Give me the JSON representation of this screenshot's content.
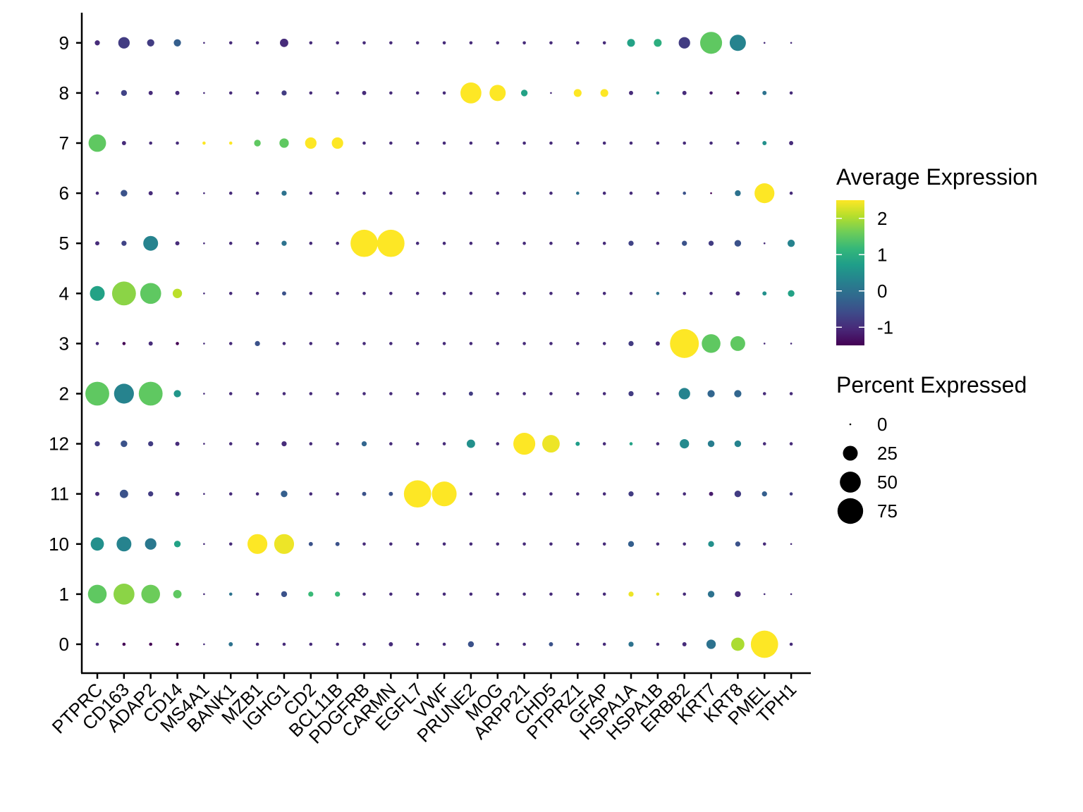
{
  "chart_data": {
    "type": "dotplot",
    "genes": [
      "PTPRC",
      "CD163",
      "ADAP2",
      "CD14",
      "MS4A1",
      "BANK1",
      "MZB1",
      "IGHG1",
      "CD2",
      "BCL11B",
      "PDGFRB",
      "CARMN",
      "EGFL7",
      "VWF",
      "PRUNE2",
      "MOG",
      "ARPP21",
      "CHD5",
      "PTPRZ1",
      "GFAP",
      "HSPA1A",
      "HSPA1B",
      "ERBB2",
      "KRT7",
      "KRT8",
      "PMEL",
      "TPH1"
    ],
    "clusters": [
      "0",
      "1",
      "10",
      "11",
      "12",
      "2",
      "3",
      "4",
      "5",
      "6",
      "7",
      "8",
      "9"
    ],
    "legend_color": {
      "title": "Average Expression",
      "ticks": [
        "2",
        "1",
        "0",
        "-1"
      ],
      "tick_values": [
        2,
        1,
        0,
        -1
      ],
      "range": [
        -1.5,
        2.5
      ],
      "colors": [
        "#440154",
        "#482878",
        "#3e4a89",
        "#31688e",
        "#26828e",
        "#1f9e89",
        "#35b779",
        "#6dcd59",
        "#b4de2c",
        "#fde725"
      ]
    },
    "legend_size": {
      "title": "Percent Expressed",
      "labels": [
        "0",
        "25",
        "50",
        "75"
      ],
      "values": [
        0,
        25,
        50,
        75
      ]
    },
    "points": {
      "0": {
        "pct": [
          1,
          1,
          1,
          1,
          0,
          2,
          1,
          1,
          1,
          1,
          1,
          2,
          1,
          1,
          4,
          1,
          1,
          2,
          1,
          1,
          3,
          1,
          2,
          10,
          20,
          85,
          1
        ],
        "avg": [
          -1,
          -1.5,
          -1.5,
          -1.5,
          -1,
          0,
          -1,
          -1,
          -1,
          -1,
          -1,
          -1,
          -1,
          -1,
          -0.5,
          -1,
          -1,
          -0.5,
          -1,
          -1,
          0,
          -1,
          -1,
          0,
          2,
          2.5,
          -1
        ]
      },
      "1": {
        "pct": [
          40,
          50,
          40,
          8,
          0,
          1,
          1,
          4,
          3,
          3,
          1,
          1,
          1,
          1,
          1,
          1,
          1,
          1,
          1,
          1,
          3,
          1,
          1,
          5,
          4,
          0,
          0
        ],
        "avg": [
          1.5,
          1.8,
          1.6,
          1.5,
          -1,
          0,
          -1,
          -0.5,
          1.2,
          1.2,
          -1,
          -1,
          -1,
          -1,
          -1,
          -1,
          -1,
          -1,
          -1,
          -1,
          2.4,
          2.4,
          -1,
          0,
          -1,
          -1,
          -1
        ]
      },
      "10": {
        "pct": [
          20,
          25,
          15,
          5,
          0,
          1,
          45,
          45,
          2,
          2,
          1,
          1,
          1,
          1,
          1,
          1,
          1,
          1,
          1,
          1,
          4,
          1,
          1,
          4,
          3,
          1,
          0
        ],
        "avg": [
          0.5,
          0.3,
          0.1,
          0.8,
          -1,
          -1,
          2.5,
          2.4,
          -0.5,
          -0.5,
          -1,
          -1,
          -1,
          -1,
          -1,
          -1,
          -1,
          -1,
          -1,
          -1,
          -0.3,
          -1,
          -1,
          0.5,
          -0.5,
          -1,
          -1
        ]
      },
      "11": {
        "pct": [
          2,
          8,
          3,
          2,
          0,
          1,
          1,
          5,
          1,
          1,
          2,
          2,
          85,
          70,
          1,
          1,
          1,
          1,
          1,
          1,
          3,
          1,
          1,
          2,
          5,
          3,
          1
        ],
        "avg": [
          -1,
          -0.5,
          -0.8,
          -1,
          -1,
          -1,
          -1,
          -0.3,
          -1,
          -1,
          -0.5,
          -0.5,
          2.5,
          2.5,
          -1,
          -1,
          -1,
          -1,
          -1,
          -1,
          -0.8,
          -1,
          -1,
          -1.2,
          -0.8,
          -0.3,
          -0.8
        ]
      },
      "12": {
        "pct": [
          3,
          5,
          3,
          2,
          0,
          1,
          1,
          3,
          1,
          1,
          3,
          1,
          1,
          1,
          8,
          1,
          55,
          35,
          2,
          1,
          1,
          1,
          10,
          5,
          5,
          1,
          1
        ],
        "avg": [
          -0.8,
          -0.5,
          -0.8,
          -1,
          -1,
          -1,
          -1,
          -1,
          -1,
          -1,
          -0.2,
          -1,
          -1,
          -1,
          0.5,
          -1,
          2.5,
          2.4,
          0.7,
          -1,
          0.8,
          -1,
          0.4,
          0.2,
          0.3,
          -1,
          -1
        ]
      },
      "2": {
        "pct": [
          65,
          45,
          65,
          6,
          0,
          1,
          1,
          1,
          1,
          1,
          1,
          1,
          1,
          1,
          2,
          1,
          1,
          1,
          1,
          1,
          3,
          1,
          15,
          6,
          6,
          1,
          1
        ],
        "avg": [
          1.5,
          0.3,
          1.5,
          0.6,
          -1,
          -1,
          -1,
          -1,
          -1,
          -1,
          -1,
          -1,
          -1,
          -1,
          -0.8,
          -1,
          -1,
          -1,
          -1,
          -1,
          -0.8,
          -1,
          0.3,
          -0.2,
          -0.2,
          -1,
          -1
        ]
      },
      "3": {
        "pct": [
          1,
          1,
          2,
          1,
          0,
          1,
          3,
          1,
          1,
          1,
          1,
          1,
          1,
          1,
          1,
          1,
          1,
          1,
          1,
          1,
          3,
          2,
          95,
          40,
          25,
          0,
          0
        ],
        "avg": [
          -1,
          -1.5,
          -1,
          -1.5,
          -1,
          -1,
          -0.5,
          -1,
          -1,
          -1,
          -1,
          -1,
          -1,
          -1,
          -1,
          -1,
          -1,
          -1,
          -1,
          -1,
          -0.8,
          -1,
          2.5,
          1.5,
          1.5,
          -1,
          -1
        ]
      },
      "4": {
        "pct": [
          25,
          65,
          50,
          10,
          0,
          1,
          1,
          2,
          1,
          1,
          1,
          1,
          1,
          1,
          1,
          1,
          1,
          1,
          1,
          1,
          1,
          1,
          1,
          1,
          2,
          2,
          5
        ],
        "avg": [
          0.8,
          1.8,
          1.5,
          2.1,
          -1,
          -1,
          -1,
          -0.5,
          -1,
          -1,
          -1,
          -1,
          -1,
          -1,
          -1,
          -1,
          -1,
          -1,
          -1,
          -1,
          -1,
          0,
          -1,
          -1,
          -1,
          0.5,
          0.8
        ]
      },
      "5": {
        "pct": [
          2,
          3,
          25,
          2,
          0,
          1,
          1,
          3,
          1,
          1,
          85,
          85,
          1,
          1,
          1,
          1,
          1,
          1,
          1,
          1,
          3,
          1,
          3,
          3,
          5,
          0,
          6
        ],
        "avg": [
          -1,
          -0.7,
          0.3,
          -1,
          -1,
          -1,
          -1,
          0,
          -1,
          -1,
          2.5,
          2.5,
          -1,
          -1,
          -1,
          -1,
          -1,
          -1,
          -1,
          -1,
          -0.7,
          -1,
          -0.5,
          -0.8,
          -0.5,
          -1,
          0.3
        ]
      },
      "6": {
        "pct": [
          1,
          5,
          2,
          1,
          0,
          1,
          1,
          3,
          1,
          1,
          1,
          1,
          1,
          1,
          1,
          1,
          1,
          1,
          1,
          1,
          1,
          1,
          1,
          0,
          4,
          45,
          1
        ],
        "avg": [
          -1,
          -0.5,
          -1,
          -1,
          -1,
          -1,
          -1,
          0,
          -1,
          -1,
          -1,
          -1,
          -1,
          -1,
          -1,
          -1,
          -1,
          -1,
          0,
          -1,
          -1,
          -1,
          -0.5,
          -1.5,
          0,
          2.5,
          -1
        ]
      },
      "7": {
        "pct": [
          35,
          2,
          1,
          1,
          1,
          1,
          5,
          10,
          15,
          15,
          1,
          1,
          1,
          1,
          1,
          1,
          1,
          1,
          1,
          1,
          1,
          1,
          1,
          1,
          1,
          2,
          2
        ],
        "avg": [
          1.5,
          -1,
          -1,
          -1,
          2.5,
          2.5,
          1.5,
          1.5,
          2.5,
          2.5,
          -1,
          -1,
          -1,
          -1,
          -1,
          -1,
          -1,
          -1,
          -1,
          -1,
          -1,
          -1,
          -1,
          -1,
          -1,
          0.5,
          -1
        ]
      },
      "8": {
        "pct": [
          1,
          4,
          2,
          2,
          0,
          1,
          1,
          3,
          1,
          1,
          2,
          1,
          1,
          1,
          50,
          30,
          5,
          0,
          7,
          7,
          2,
          1,
          2,
          1,
          1,
          2,
          1
        ],
        "avg": [
          -1,
          -0.7,
          -1,
          -1,
          -1,
          -1,
          -1,
          -0.8,
          -1,
          -1,
          -1,
          -1,
          -1,
          -1,
          2.5,
          2.5,
          0.8,
          -1,
          2.5,
          2.5,
          -1,
          0.5,
          -1,
          -1.2,
          -1.5,
          0,
          -1
        ]
      },
      "9": {
        "pct": [
          3,
          15,
          6,
          6,
          0,
          1,
          1,
          8,
          1,
          1,
          1,
          1,
          1,
          1,
          1,
          1,
          1,
          1,
          1,
          1,
          7,
          7,
          15,
          55,
          30,
          0,
          0
        ],
        "avg": [
          -1,
          -0.8,
          -0.8,
          -0.3,
          -1,
          -1,
          -1,
          -1,
          -1,
          -1,
          -1,
          -1,
          -1,
          -1,
          -1,
          -1,
          -1,
          -1,
          -1,
          -1,
          0.8,
          1,
          -0.8,
          1.5,
          0.3,
          -1,
          -1
        ]
      }
    }
  }
}
